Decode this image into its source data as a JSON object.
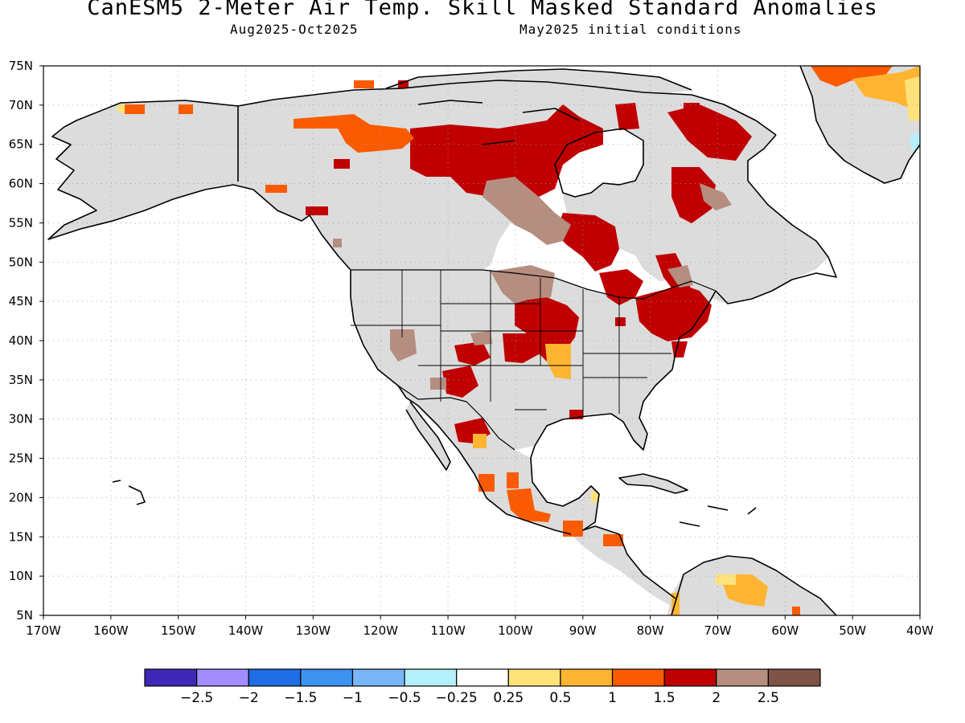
{
  "title": "CanESM5 2-Meter Air Temp. Skill Masked Standard Anomalies",
  "subtitle_left": "Aug2025-Oct2025",
  "subtitle_right": "May2025 initial conditions",
  "map": {
    "lon_range": [
      -170,
      -40
    ],
    "lat_range": [
      5,
      75
    ],
    "lat_ticks": [
      "5N",
      "10N",
      "15N",
      "20N",
      "25N",
      "30N",
      "35N",
      "40N",
      "45N",
      "50N",
      "55N",
      "60N",
      "65N",
      "70N",
      "75N"
    ],
    "lon_ticks": [
      "170W",
      "160W",
      "150W",
      "140W",
      "130W",
      "120W",
      "110W",
      "100W",
      "90W",
      "80W",
      "70W",
      "60W",
      "50W",
      "40W"
    ],
    "grid": true
  },
  "legend": {
    "colors": [
      "#3f28b8",
      "#a28cff",
      "#1f6de5",
      "#3d93ef",
      "#78b6f7",
      "#b4f0fa",
      "#ffffff",
      "#ffe37a",
      "#ffb532",
      "#fa5b00",
      "#c00000",
      "#b58e80",
      "#7e5448"
    ],
    "labels": [
      "-2.5",
      "-2",
      "-1.5",
      "-1",
      "-0.5",
      "-0.25",
      "0.25",
      "0.5",
      "1",
      "1.5",
      "2",
      "2.5"
    ]
  },
  "colors": {
    "land_skill": "#dcdcdc",
    "coast": "#000000",
    "grid": "#999999"
  }
}
